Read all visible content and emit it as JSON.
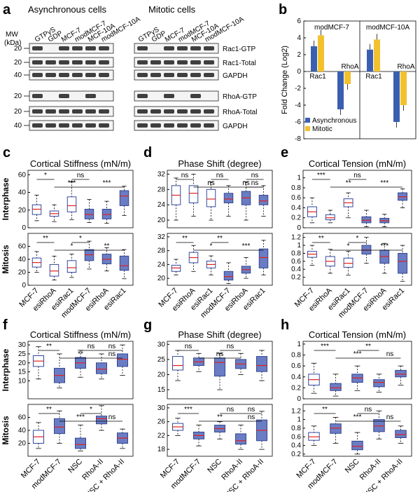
{
  "panel_letters": [
    "a",
    "b",
    "c",
    "d",
    "e",
    "f",
    "g",
    "h"
  ],
  "blot": {
    "header_left": "Asynchronous cells",
    "header_right": "Mitotic cells",
    "mw_label": [
      "MW",
      "(kDa)"
    ],
    "lanes": [
      "GTPγS",
      "GDP",
      "MCF-7",
      "modMCF-7",
      "MCF-10A",
      "modMCF-10A"
    ],
    "lanes_right": [
      "GTPγS",
      "GDP",
      "MCF-7",
      "modMCF-7",
      "MCF-10A",
      "modMCF-10A"
    ],
    "row_labels": [
      "Rac1-GTP",
      "Rac1-Total",
      "GAPDH",
      "RhoA-GTP",
      "RhoA-Total",
      "GAPDH"
    ],
    "mw_ticks": [
      "20",
      "20",
      "40",
      "20",
      "20",
      "40"
    ]
  },
  "chart_data": [
    {
      "panel": "b",
      "type": "bar",
      "ylabel": "Fold Change (Log2)",
      "ylim": [
        -8,
        6
      ],
      "yticks": [
        -8,
        -6,
        -4,
        -2,
        0,
        2,
        4,
        6
      ],
      "groups": [
        "modMCF-7",
        "modMCF-10A"
      ],
      "categories": [
        "Rac1",
        "RhoA",
        "Rac1",
        "RhoA"
      ],
      "series": [
        {
          "name": "Asynchronous",
          "color": "#3a5fb0",
          "values": [
            3.0,
            -4.5,
            2.6,
            -6.0
          ]
        },
        {
          "name": "Mitotic",
          "color": "#f2c12e",
          "values": [
            4.3,
            -1.5,
            3.8,
            -4.0
          ]
        }
      ],
      "legend_position": "bottom-left"
    },
    {
      "panel": "c",
      "type": "box",
      "title": "Cortical Stiffness (mN/m)",
      "categories": [
        "MCF-7",
        "esiRhoA",
        "esiRac1",
        "modMCF-7",
        "esiRhoA",
        "esiRac1"
      ],
      "rows": [
        {
          "label": "Interphase",
          "ylim": [
            0,
            65
          ],
          "yticks": [
            0,
            20,
            40,
            60
          ],
          "boxes": [
            [
              8,
              15,
              21,
              26,
              37
            ],
            [
              7,
              13,
              16,
              19,
              26
            ],
            [
              9,
              18,
              25,
              35,
              52
            ],
            [
              6,
              10,
              15,
              21,
              32
            ],
            [
              5,
              10,
              15,
              21,
              30
            ],
            [
              14,
              25,
              36,
              42,
              47
            ]
          ],
          "fill": [
            "white",
            "white",
            "white",
            "blue",
            "blue",
            "blue"
          ],
          "annotations": [
            "*",
            "***",
            "ns",
            "***"
          ]
        },
        {
          "label": "Mitosis",
          "ylim": [
            0,
            80
          ],
          "yticks": [
            0,
            20,
            40,
            60
          ],
          "boxes": [
            [
              20,
              28,
              35,
              42,
              52
            ],
            [
              8,
              14,
              22,
              32,
              45
            ],
            [
              12,
              20,
              27,
              38,
              48
            ],
            [
              25,
              38,
              47,
              55,
              68
            ],
            [
              22,
              33,
              40,
              48,
              58
            ],
            [
              10,
              23,
              30,
              45,
              55
            ]
          ],
          "fill": [
            "white",
            "white",
            "white",
            "blue",
            "blue",
            "blue"
          ],
          "annotations": [
            "**",
            "*",
            "*",
            "**"
          ]
        }
      ]
    },
    {
      "panel": "d",
      "type": "box",
      "title": "Phase Shift (degree)",
      "categories": [
        "MCF-7",
        "esiRhoA",
        "esiRac1",
        "modMCF-7",
        "esiRhoA",
        "esiRac1"
      ],
      "rows": [
        {
          "label": "Interphase",
          "ylim": [
            18,
            33
          ],
          "yticks": [
            20,
            24,
            28,
            32
          ],
          "boxes": [
            [
              20,
              24,
              26.5,
              29,
              31
            ],
            [
              21,
              24.5,
              27,
              29,
              32
            ],
            [
              20,
              23.5,
              25.5,
              28,
              30
            ],
            [
              21,
              24.5,
              25.5,
              27,
              29
            ],
            [
              20,
              24,
              25.8,
              27.5,
              30
            ],
            [
              21,
              24,
              25,
              26.5,
              29
            ]
          ],
          "fill": [
            "white",
            "white",
            "white",
            "blue",
            "blue",
            "blue"
          ],
          "annotations": [
            "ns",
            "ns",
            "ns",
            "ns",
            "ns",
            "ns"
          ]
        },
        {
          "label": "Mitosis",
          "ylim": [
            18,
            33
          ],
          "yticks": [
            20,
            24,
            28,
            32
          ],
          "boxes": [
            [
              21,
              22,
              23,
              23.8,
              25.5
            ],
            [
              22,
              24.5,
              26,
              27.5,
              29.5
            ],
            [
              21,
              23,
              24,
              25,
              26.5
            ],
            [
              18.5,
              19.5,
              20.5,
              22,
              24.5
            ],
            [
              20,
              21.5,
              22.5,
              23.5,
              26
            ],
            [
              21,
              23,
              26,
              28.5,
              31
            ]
          ],
          "fill": [
            "white",
            "white",
            "white",
            "blue",
            "blue",
            "blue"
          ],
          "annotations": [
            "**",
            "*",
            "**",
            "***"
          ]
        }
      ]
    },
    {
      "panel": "e",
      "type": "box",
      "title": "Cortical Tension (mN/m)",
      "categories": [
        "MCF-7",
        "esiRhoA",
        "esiRac1",
        "modMCF-7",
        "esiRhoA",
        "esiRac1"
      ],
      "rows": [
        {
          "label": "Interphase",
          "ylim": [
            0,
            1.15
          ],
          "yticks": [
            0,
            0.2,
            0.4,
            0.6,
            0.8,
            1
          ],
          "boxes": [
            [
              0.1,
              0.22,
              0.32,
              0.42,
              0.6
            ],
            [
              0.1,
              0.16,
              0.2,
              0.26,
              0.35
            ],
            [
              0.2,
              0.42,
              0.5,
              0.58,
              0.7
            ],
            [
              0.02,
              0.1,
              0.15,
              0.22,
              0.35
            ],
            [
              0.02,
              0.1,
              0.14,
              0.19,
              0.27
            ],
            [
              0.4,
              0.55,
              0.62,
              0.7,
              0.78
            ]
          ],
          "fill": [
            "white",
            "white",
            "white",
            "blue",
            "blue",
            "blue"
          ],
          "annotations": [
            "***",
            "**",
            "ns",
            "***"
          ]
        },
        {
          "label": "Mitosis",
          "ylim": [
            0,
            1.3
          ],
          "yticks": [
            0.2,
            0.4,
            0.6,
            0.8,
            1,
            1.2
          ],
          "boxes": [
            [
              0.5,
              0.7,
              0.78,
              0.85,
              1
            ],
            [
              0.3,
              0.48,
              0.6,
              0.72,
              0.9
            ],
            [
              0.25,
              0.45,
              0.55,
              0.68,
              0.85
            ],
            [
              0.55,
              0.78,
              0.88,
              1.0,
              1.2
            ],
            [
              0.3,
              0.55,
              0.72,
              0.88,
              1.05
            ],
            [
              0.1,
              0.3,
              0.6,
              0.8,
              1.0
            ]
          ],
          "fill": [
            "white",
            "white",
            "white",
            "blue",
            "blue",
            "blue"
          ],
          "annotations": [
            "**",
            "*",
            "*",
            "***"
          ]
        }
      ]
    },
    {
      "panel": "f",
      "type": "box",
      "title": "Cortical Stiffness (mN/m)",
      "categories": [
        "MCF-7",
        "modMCF-7",
        "NSC",
        "RhoA-II",
        "NSC + RhoA-II"
      ],
      "rows": [
        {
          "label": "Interphase",
          "ylim": [
            0,
            32
          ],
          "yticks": [
            10,
            15,
            20,
            25,
            30
          ],
          "boxes": [
            [
              11,
              18,
              21,
              24,
              29
            ],
            [
              6,
              9,
              13,
              17,
              25
            ],
            [
              12,
              17,
              20,
              23,
              27
            ],
            [
              11,
              14,
              16.5,
              20,
              25
            ],
            [
              13,
              18,
              22,
              25,
              30
            ]
          ],
          "fill": [
            "white",
            "blue",
            "blue",
            "blue",
            "blue"
          ],
          "annotations": [
            "**",
            "**",
            "ns",
            "ns",
            "ns"
          ]
        },
        {
          "label": "Mitosis",
          "ylim": [
            0,
            80
          ],
          "yticks": [
            20,
            40,
            60
          ],
          "boxes": [
            [
              12,
              20,
              30,
              40,
              52
            ],
            [
              20,
              35,
              45,
              58,
              70
            ],
            [
              8,
              12,
              18,
              28,
              48
            ],
            [
              40,
              50,
              58,
              62,
              78
            ],
            [
              12,
              20,
              28,
              36,
              42
            ]
          ],
          "fill": [
            "white",
            "blue",
            "blue",
            "blue",
            "blue"
          ],
          "annotations": [
            "**",
            "***",
            "*",
            "ns"
          ]
        }
      ]
    },
    {
      "panel": "g",
      "type": "box",
      "title": "Phase Shift (degree)",
      "categories": [
        "MCF-7",
        "modMCF-7",
        "NSC",
        "RhoA-II",
        "NSC + RhoA-II"
      ],
      "rows": [
        {
          "label": "Interphase",
          "ylim": [
            12,
            31
          ],
          "yticks": [
            15,
            20,
            25,
            30
          ],
          "boxes": [
            [
              18,
              21.5,
              23,
              26,
              28
            ],
            [
              21,
              23,
              24.2,
              25.5,
              27
            ],
            [
              15,
              19.5,
              24,
              25.5,
              27
            ],
            [
              20,
              22,
              23.5,
              25,
              27
            ],
            [
              18,
              21,
              23,
              26,
              28
            ]
          ],
          "fill": [
            "white",
            "blue",
            "blue",
            "blue",
            "blue"
          ],
          "annotations": [
            "ns",
            "ns",
            "ns"
          ]
        },
        {
          "label": "Mitosis",
          "ylim": [
            16,
            31
          ],
          "yticks": [
            18,
            22,
            26,
            30
          ],
          "boxes": [
            [
              22,
              23.5,
              24.5,
              25.5,
              27
            ],
            [
              19,
              21,
              22,
              23,
              25
            ],
            [
              21,
              23,
              24,
              25,
              26
            ],
            [
              18,
              19.5,
              20.5,
              22.5,
              25
            ],
            [
              18,
              20.5,
              23.5,
              26.5,
              29
            ]
          ],
          "fill": [
            "white",
            "blue",
            "blue",
            "blue",
            "blue"
          ],
          "annotations": [
            "***",
            "**",
            "ns",
            "ns",
            "ns"
          ]
        }
      ]
    },
    {
      "panel": "h",
      "type": "box",
      "title": "Cortical Tension (mN/m)",
      "categories": [
        "MCF-7",
        "modMCF-7",
        "NSC",
        "RhoA-II",
        "NSC + RhoA-II"
      ],
      "rows": [
        {
          "label": "Interphase",
          "ylim": [
            0,
            1.05
          ],
          "yticks": [
            0,
            0.2,
            0.4,
            0.6,
            0.8,
            1
          ],
          "boxes": [
            [
              0.1,
              0.25,
              0.35,
              0.45,
              0.65
            ],
            [
              0.05,
              0.15,
              0.2,
              0.28,
              0.45
            ],
            [
              0.15,
              0.3,
              0.38,
              0.45,
              0.6
            ],
            [
              0.12,
              0.22,
              0.3,
              0.35,
              0.45
            ],
            [
              0.25,
              0.4,
              0.45,
              0.52,
              0.6
            ]
          ],
          "fill": [
            "white",
            "blue",
            "blue",
            "blue",
            "blue"
          ],
          "annotations": [
            "***",
            "***",
            "**",
            "ns"
          ]
        },
        {
          "label": "Mitosis",
          "ylim": [
            0.15,
            1.35
          ],
          "yticks": [
            0.2,
            0.4,
            0.6,
            0.8,
            1,
            1.2
          ],
          "boxes": [
            [
              0.4,
              0.52,
              0.6,
              0.7,
              0.85
            ],
            [
              0.45,
              0.68,
              0.8,
              0.9,
              1.05
            ],
            [
              0.2,
              0.3,
              0.38,
              0.5,
              0.7
            ],
            [
              0.55,
              0.72,
              0.85,
              1.0,
              1.2
            ],
            [
              0.45,
              0.58,
              0.65,
              0.75,
              0.85
            ]
          ],
          "fill": [
            "white",
            "blue",
            "blue",
            "blue",
            "blue"
          ],
          "annotations": [
            "**",
            "***",
            "ns",
            "ns"
          ]
        }
      ]
    }
  ]
}
